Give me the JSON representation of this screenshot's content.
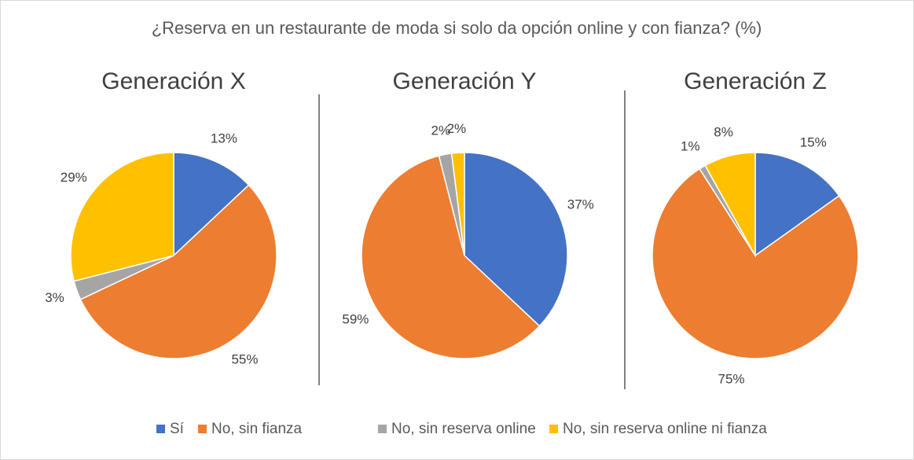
{
  "title": "¿Reserva en un restaurante de moda si solo da opción online y con fianza? (%)",
  "categories": [
    "Sí",
    "No, sin fianza",
    "No, sin reserva online",
    "No, sin reserva online ni fianza"
  ],
  "colors": [
    "#4472c4",
    "#ed7d31",
    "#a5a5a5",
    "#ffc000"
  ],
  "chart_data": [
    {
      "type": "pie",
      "title": "Generación X",
      "values": [
        13,
        55,
        3,
        29
      ],
      "value_labels": [
        "13%",
        "55%",
        "3%",
        "29%"
      ]
    },
    {
      "type": "pie",
      "title": "Generación Y",
      "values": [
        37,
        59,
        2,
        2
      ],
      "value_labels": [
        "37%",
        "59%",
        "2%",
        "2%"
      ]
    },
    {
      "type": "pie",
      "title": "Generación Z",
      "values": [
        15,
        75,
        1,
        8
      ],
      "value_labels": [
        "15%",
        "75%",
        "1%",
        "8%"
      ]
    }
  ]
}
